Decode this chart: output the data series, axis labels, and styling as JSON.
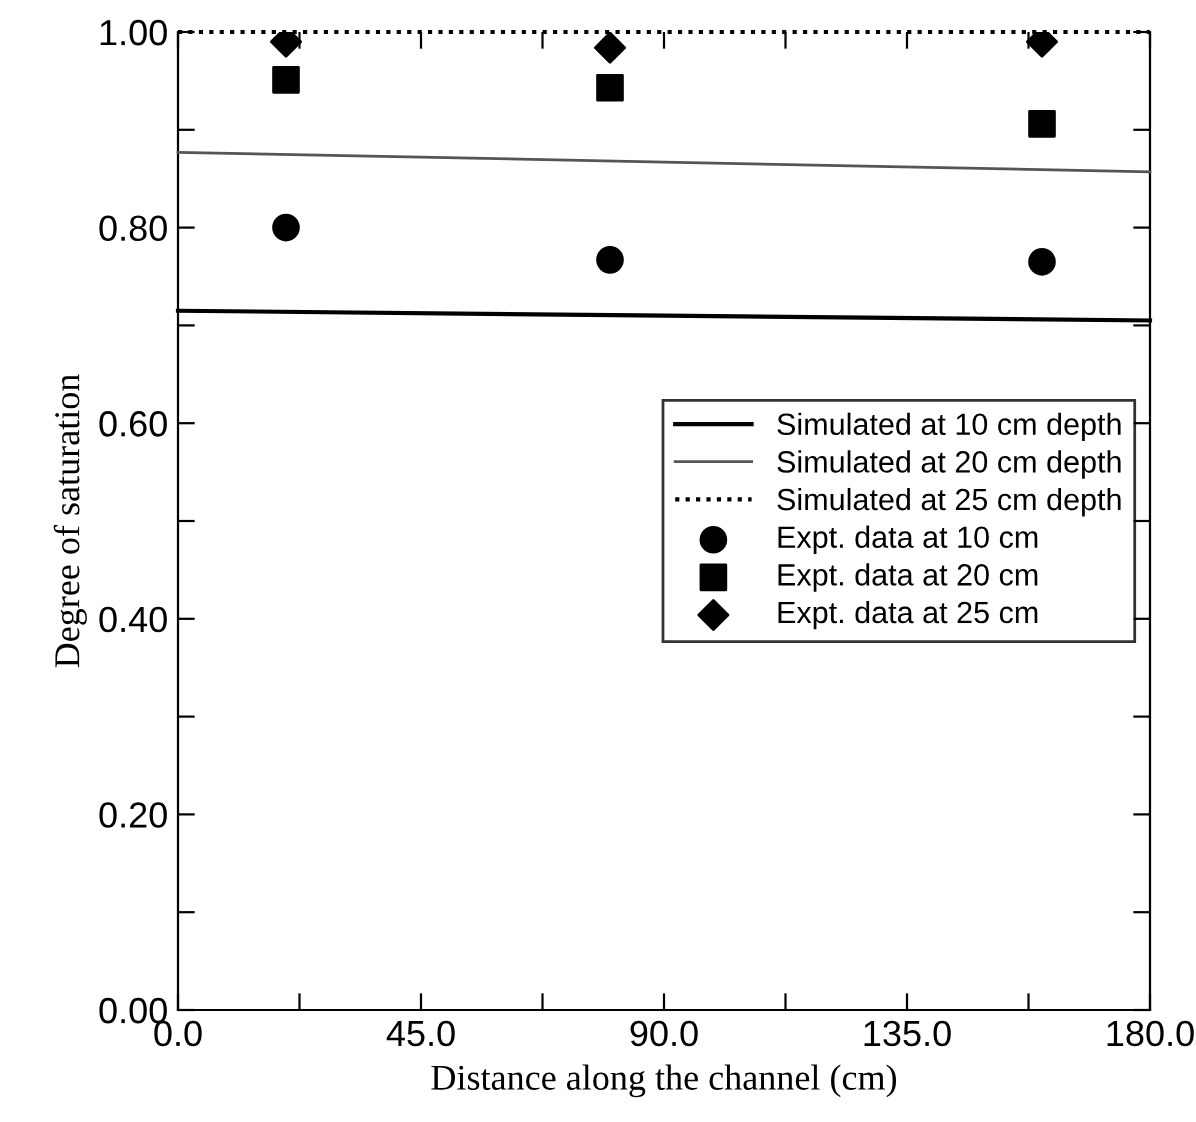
{
  "chart_data": {
    "type": "line",
    "xlabel": "Distance along the channel (cm)",
    "ylabel": "Degree of saturation",
    "xlim": [
      0,
      180
    ],
    "ylim": [
      0,
      1
    ],
    "xticks": [
      {
        "value": 0,
        "label": "0.0"
      },
      {
        "value": 22.5,
        "label": null
      },
      {
        "value": 45,
        "label": "45.0"
      },
      {
        "value": 67.5,
        "label": null
      },
      {
        "value": 90,
        "label": "90.0"
      },
      {
        "value": 112.5,
        "label": null
      },
      {
        "value": 135,
        "label": "135.0"
      },
      {
        "value": 157.5,
        "label": null
      },
      {
        "value": 180,
        "label": "180.0"
      }
    ],
    "yticks": [
      {
        "value": 0,
        "label": "0.00"
      },
      {
        "value": 0.1,
        "label": null
      },
      {
        "value": 0.2,
        "label": "0.20"
      },
      {
        "value": 0.3,
        "label": null
      },
      {
        "value": 0.4,
        "label": "0.40"
      },
      {
        "value": 0.5,
        "label": null
      },
      {
        "value": 0.6,
        "label": "0.60"
      },
      {
        "value": 0.7,
        "label": null
      },
      {
        "value": 0.8,
        "label": "0.80"
      },
      {
        "value": 0.9,
        "label": null
      },
      {
        "value": 1.0,
        "label": "1.00"
      }
    ],
    "grid": false,
    "legend": "right",
    "series": [
      {
        "name": "Simulated at 10 cm depth",
        "color": "#000000",
        "line_style": "solid",
        "x": [
          0,
          90,
          180
        ],
        "values": [
          0.715,
          0.71,
          0.705
        ]
      },
      {
        "name": "Simulated at 20 cm depth",
        "color": "#555555",
        "line_style": "solid",
        "x": [
          0,
          90,
          180
        ],
        "values": [
          0.877,
          0.867,
          0.857
        ]
      },
      {
        "name": "Simulated at 25 cm depth",
        "color": "#000000",
        "line_style": "dotted",
        "x": [
          0,
          180
        ],
        "values": [
          1.0,
          1.0
        ]
      },
      {
        "name": "Expt. data at 10 cm",
        "type": "scatter",
        "color": "#000000",
        "marker": "circle",
        "x": [
          20,
          80,
          160
        ],
        "values": [
          0.8,
          0.767,
          0.765
        ]
      },
      {
        "name": "Expt. data at 20 cm",
        "type": "scatter",
        "color": "#000000",
        "marker": "square",
        "x": [
          20,
          80,
          160
        ],
        "values": [
          0.951,
          0.943,
          0.906
        ]
      },
      {
        "name": "Expt. data at 25 cm",
        "type": "scatter",
        "color": "#000000",
        "marker": "diamond",
        "x": [
          20,
          80,
          160
        ],
        "values": [
          0.99,
          0.984,
          0.99
        ]
      }
    ]
  }
}
